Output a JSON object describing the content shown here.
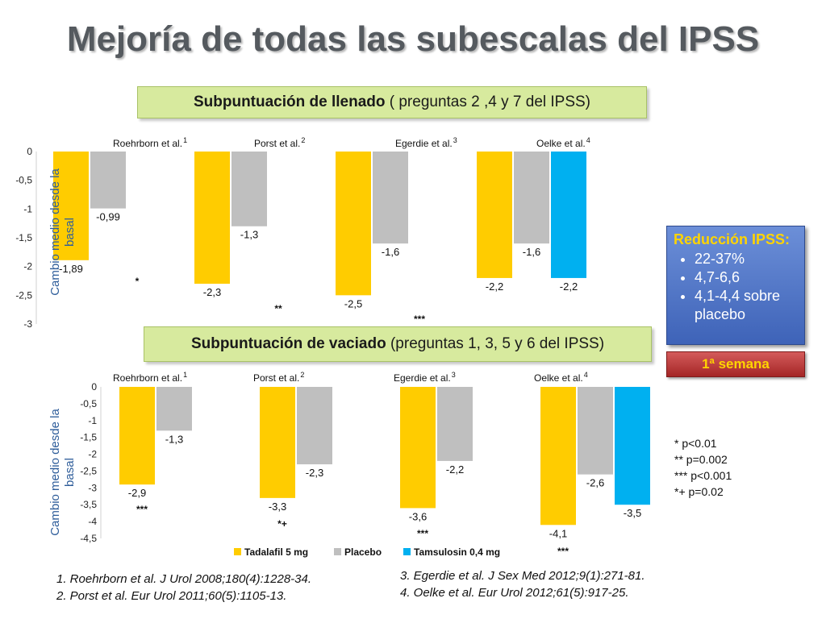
{
  "title": "Mejoría de todas las subescalas del IPSS",
  "header1": {
    "bold": "Subpuntuación de llenado",
    "rest": "  ( preguntas 2 ,4 y 7 del IPSS)"
  },
  "header2": {
    "bold": "Subpuntuación de vaciado",
    "rest": "  (preguntas 1, 3, 5 y 6 del IPSS)"
  },
  "ylabel": "Cambio medio desde la basal",
  "side_box": {
    "title": "Reducción IPSS:",
    "items": [
      "22-37%",
      "4,7-6,6",
      "4,1-4,4 sobre placebo"
    ]
  },
  "week_box": "1ª semana",
  "pvalues": [
    "* p<0.01",
    "**  p=0.002",
    "*** p<0.001",
    "*+ p=0.02"
  ],
  "references_left": [
    "1.  Roehrborn et al. J Urol 2008;180(4):1228-34.",
    "2.  Porst et al. Eur Urol 2011;60(5):1105-13."
  ],
  "references_right": [
    "3.  Egerdie et al. J Sex Med 2012;9(1):271-81.",
    "4.  Oelke et al. Eur Urol 2012;61(5):917-25."
  ],
  "colors": {
    "tadalafil": "#ffcc00",
    "placebo": "#bfbfbf",
    "tamsulosin": "#00b0f0"
  },
  "chart_data": [
    {
      "type": "bar",
      "name": "llenado",
      "categories": [
        "Roehrborn et al.1",
        "Porst et al. 2",
        "Egerdie et al.3",
        "Oelke et al.4"
      ],
      "series": [
        {
          "name": "Tadalafil 5 mg",
          "values": [
            -1.89,
            -2.3,
            -2.5,
            -2.2
          ]
        },
        {
          "name": "Placebo",
          "values": [
            -0.99,
            -1.3,
            -1.6,
            -1.6
          ]
        },
        {
          "name": "Tamsulosin 0,4 mg",
          "values": [
            null,
            null,
            null,
            -2.2
          ]
        }
      ],
      "value_labels": [
        [
          "-1,89",
          "-2,3",
          "-2,5",
          "-2,2"
        ],
        [
          "-0,99",
          "-1,3",
          "-1,6",
          "-1,6"
        ],
        [
          null,
          null,
          null,
          "-2,2"
        ]
      ],
      "significance": [
        "*",
        "**",
        "***",
        ""
      ],
      "ylim": [
        -3,
        0
      ],
      "yticks": [
        "0",
        "-0,5",
        "-1",
        "-1,5",
        "-2",
        "-2,5",
        "-3"
      ],
      "legend": false
    },
    {
      "type": "bar",
      "name": "vaciado",
      "categories": [
        "Roehrborn et al.1",
        "Porst et al. 2",
        "Egerdie et al.3",
        "Oelke et al.4"
      ],
      "series": [
        {
          "name": "Tadalafil 5 mg",
          "values": [
            -2.9,
            -3.3,
            -3.6,
            -4.1
          ]
        },
        {
          "name": "Placebo",
          "values": [
            -1.3,
            -2.3,
            -2.2,
            -2.6
          ]
        },
        {
          "name": "Tamsulosin 0,4 mg",
          "values": [
            null,
            null,
            null,
            -3.5
          ]
        }
      ],
      "value_labels": [
        [
          "-2,9",
          "-3,3",
          "-3,6",
          "-4,1"
        ],
        [
          "-1,3",
          "-2,3",
          "-2,2",
          "-2,6"
        ],
        [
          null,
          null,
          null,
          "-3,5"
        ]
      ],
      "significance": [
        "***",
        "*+",
        "***",
        "***"
      ],
      "ylim": [
        -4.5,
        0
      ],
      "yticks": [
        "0",
        "-0,5",
        "-1",
        "-1,5",
        "-2",
        "-2,5",
        "-3",
        "-3,5",
        "-4",
        "-4,5"
      ],
      "legend": true,
      "legend_labels": [
        "Tadalafil 5 mg",
        "Placebo",
        "Tamsulosin 0,4 mg"
      ]
    }
  ]
}
